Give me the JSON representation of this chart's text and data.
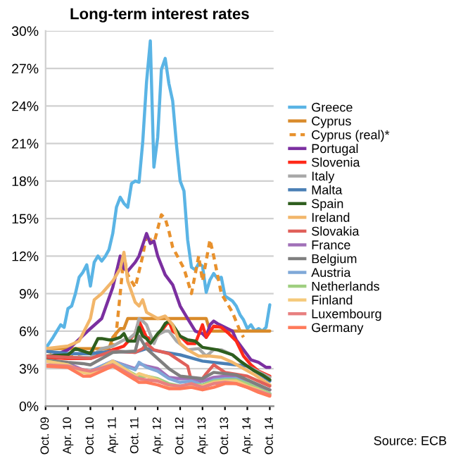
{
  "chart_data": {
    "type": "line",
    "title": "Long-term interest rates",
    "annotations": [
      "Source: ECB"
    ],
    "xlim": [
      "2009-10",
      "2014-11"
    ],
    "ylim": [
      0,
      30
    ],
    "xticks": [
      {
        "value": "2009-10",
        "label": "Oct. 09"
      },
      {
        "value": "2010-04",
        "label": "Apr. 10"
      },
      {
        "value": "2010-10",
        "label": "Oct. 10"
      },
      {
        "value": "2011-04",
        "label": "Apr. 11"
      },
      {
        "value": "2011-10",
        "label": "Oct. 11"
      },
      {
        "value": "2012-04",
        "label": "Apr. 12"
      },
      {
        "value": "2012-10",
        "label": "Oct. 12"
      },
      {
        "value": "2013-04",
        "label": "Apr. 13"
      },
      {
        "value": "2013-10",
        "label": "Oct. 13"
      },
      {
        "value": "2014-04",
        "label": "Apr. 14"
      },
      {
        "value": "2014-10",
        "label": "Oct. 14"
      }
    ],
    "yticks": [
      {
        "value": 0,
        "label": "0%"
      },
      {
        "value": 3,
        "label": "3%"
      },
      {
        "value": 6,
        "label": "6%"
      },
      {
        "value": 9,
        "label": "9%"
      },
      {
        "value": 12,
        "label": "12%"
      },
      {
        "value": 15,
        "label": "15%"
      },
      {
        "value": 18,
        "label": "18%"
      },
      {
        "value": 21,
        "label": "21%"
      },
      {
        "value": 24,
        "label": "24%"
      },
      {
        "value": 27,
        "label": "27%"
      },
      {
        "value": 30,
        "label": "30%"
      }
    ],
    "grid": "y",
    "legend": "right",
    "marker": "none",
    "x": [
      "2009-10",
      "2010-04",
      "2010-08",
      "2010-10",
      "2011-04",
      "2011-10",
      "2011-11",
      "2012-01",
      "2012-04",
      "2012-07",
      "2012-10",
      "2013-01",
      "2013-04",
      "2013-07",
      "2013-10",
      "2014-01",
      "2014-04",
      "2014-07",
      "2014-10"
    ],
    "series": [
      {
        "name": "Greece",
        "color": "#5ab4e5",
        "x": [
          "2009-10",
          "2009-12",
          "2010-02",
          "2010-03",
          "2010-04",
          "2010-05",
          "2010-06",
          "2010-07",
          "2010-08",
          "2010-09",
          "2010-10",
          "2010-11",
          "2010-12",
          "2011-01",
          "2011-02",
          "2011-03",
          "2011-04",
          "2011-05",
          "2011-06",
          "2011-07",
          "2011-08",
          "2011-09",
          "2011-10",
          "2011-11",
          "2011-12",
          "2012-01",
          "2012-02",
          "2012-03",
          "2012-04",
          "2012-05",
          "2012-06",
          "2012-07",
          "2012-08",
          "2012-09",
          "2012-10",
          "2012-11",
          "2012-12",
          "2013-01",
          "2013-02",
          "2013-03",
          "2013-04",
          "2013-05",
          "2013-06",
          "2013-07",
          "2013-08",
          "2013-09",
          "2013-10",
          "2013-11",
          "2013-12",
          "2014-01",
          "2014-02",
          "2014-03",
          "2014-04",
          "2014-05",
          "2014-06",
          "2014-07",
          "2014-08",
          "2014-09",
          "2014-10"
        ],
        "values": [
          4.6,
          5.5,
          6.5,
          6.3,
          7.8,
          8.0,
          9.0,
          10.3,
          10.7,
          11.3,
          9.6,
          11.5,
          12.0,
          11.6,
          12.0,
          12.5,
          13.8,
          15.9,
          16.7,
          16.2,
          15.9,
          17.8,
          18.0,
          17.9,
          21.1,
          25.9,
          29.2,
          19.1,
          21.5,
          26.9,
          27.8,
          25.8,
          24.4,
          20.9,
          18.0,
          17.2,
          13.3,
          11.1,
          10.9,
          11.4,
          11.2,
          9.1,
          10.1,
          10.6,
          10.2,
          10.3,
          8.8,
          8.6,
          8.4,
          8.0,
          7.3,
          6.9,
          6.2,
          6.5,
          6.0,
          6.2,
          6.0,
          6.3,
          8.1
        ]
      },
      {
        "name": "Cyprus",
        "color": "#d98b2b",
        "x": [
          "2009-10",
          "2011-03",
          "2011-04",
          "2011-06",
          "2011-07",
          "2011-08",
          "2013-05",
          "2013-06",
          "2014-10"
        ],
        "values": [
          4.6,
          4.6,
          5.5,
          6.2,
          6.2,
          7.0,
          7.0,
          6.0,
          6.0
        ]
      },
      {
        "name": "Cyprus (real)*",
        "color": "#e8912d",
        "line_style": "dashed",
        "x": [
          "2009-10",
          "2010-04",
          "2010-10",
          "2011-04",
          "2011-05",
          "2011-07",
          "2011-08",
          "2011-10",
          "2011-12",
          "2012-01",
          "2012-03",
          "2012-05",
          "2012-06",
          "2012-07",
          "2012-08",
          "2012-11",
          "2013-01",
          "2013-03",
          "2013-04",
          "2013-06",
          "2013-07",
          "2013-09",
          "2013-12",
          "2014-02",
          "2014-03"
        ],
        "values": [
          4.4,
          4.0,
          4.3,
          4.8,
          6.0,
          12.0,
          10.5,
          9.5,
          12.0,
          13.7,
          13.0,
          15.3,
          15.0,
          14.0,
          12.7,
          11.0,
          9.0,
          12.0,
          10.0,
          13.3,
          12.0,
          9.0,
          7.5,
          6.0,
          5.5
        ]
      },
      {
        "name": "Portugal",
        "color": "#7b2fa0",
        "x": [
          "2009-10",
          "2010-04",
          "2010-10",
          "2011-01",
          "2011-04",
          "2011-06",
          "2011-07",
          "2011-08",
          "2011-10",
          "2011-11",
          "2012-01",
          "2012-02",
          "2012-03",
          "2012-04",
          "2012-06",
          "2012-08",
          "2012-10",
          "2012-12",
          "2013-02",
          "2013-04",
          "2013-05",
          "2013-06",
          "2013-07",
          "2013-08",
          "2013-10",
          "2013-12",
          "2014-01",
          "2014-03",
          "2014-05",
          "2014-07",
          "2014-09",
          "2014-10"
        ],
        "values": [
          3.8,
          4.5,
          6.2,
          7.0,
          9.5,
          12.0,
          11.0,
          10.8,
          11.5,
          12.0,
          13.8,
          13.0,
          13.2,
          12.0,
          10.5,
          9.7,
          8.0,
          7.0,
          6.0,
          5.8,
          5.5,
          6.5,
          6.8,
          6.6,
          6.3,
          6.0,
          5.3,
          4.5,
          3.7,
          3.5,
          3.1,
          3.1
        ]
      },
      {
        "name": "Slovenia",
        "color": "#ff2a1a",
        "x": [
          "2009-10",
          "2010-04",
          "2010-10",
          "2011-01",
          "2011-04",
          "2011-07",
          "2011-10",
          "2011-11",
          "2012-01",
          "2012-03",
          "2012-05",
          "2012-07",
          "2012-08",
          "2012-10",
          "2012-12",
          "2013-02",
          "2013-04",
          "2013-05",
          "2013-07",
          "2013-09",
          "2013-11",
          "2014-01",
          "2014-03",
          "2014-05",
          "2014-07",
          "2014-10"
        ],
        "values": [
          3.9,
          3.8,
          3.8,
          4.2,
          4.5,
          4.8,
          5.8,
          6.8,
          5.5,
          5.3,
          6.0,
          6.8,
          6.0,
          5.6,
          5.0,
          5.0,
          6.5,
          5.5,
          6.4,
          6.3,
          5.8,
          5.2,
          4.0,
          3.3,
          2.8,
          2.4
        ]
      },
      {
        "name": "Italy",
        "color": "#a8a8a8",
        "x": [
          "2009-10",
          "2010-04",
          "2010-10",
          "2011-01",
          "2011-04",
          "2011-07",
          "2011-08",
          "2011-10",
          "2011-11",
          "2011-12",
          "2012-01",
          "2012-03",
          "2012-04",
          "2012-06",
          "2012-07",
          "2012-09",
          "2012-12",
          "2013-03",
          "2013-05",
          "2013-07",
          "2013-09",
          "2013-12",
          "2014-02",
          "2014-04",
          "2014-06",
          "2014-08",
          "2014-10"
        ],
        "values": [
          4.0,
          3.9,
          3.9,
          4.6,
          4.8,
          5.3,
          5.3,
          5.8,
          7.0,
          6.8,
          6.5,
          5.0,
          5.7,
          6.0,
          6.0,
          5.2,
          4.5,
          4.6,
          4.0,
          4.5,
          4.5,
          4.1,
          3.6,
          3.2,
          2.9,
          2.6,
          2.3
        ]
      },
      {
        "name": "Malta",
        "color": "#4a7fb5",
        "x": [
          "2009-10",
          "2010-04",
          "2010-10",
          "2011-04",
          "2011-10",
          "2012-01",
          "2012-04",
          "2012-10",
          "2013-04",
          "2013-10",
          "2014-04",
          "2014-10"
        ],
        "values": [
          4.4,
          4.2,
          4.2,
          4.4,
          4.3,
          4.6,
          4.4,
          4.1,
          3.6,
          3.4,
          3.2,
          2.0
        ]
      },
      {
        "name": "Spain",
        "color": "#2e5e1e",
        "x": [
          "2009-10",
          "2010-04",
          "2010-06",
          "2010-10",
          "2010-12",
          "2011-01",
          "2011-03",
          "2011-04",
          "2011-06",
          "2011-07",
          "2011-08",
          "2011-10",
          "2011-11",
          "2011-12",
          "2012-01",
          "2012-02",
          "2012-04",
          "2012-05",
          "2012-06",
          "2012-07",
          "2012-08",
          "2012-10",
          "2012-12",
          "2013-02",
          "2013-04",
          "2013-06",
          "2013-08",
          "2013-10",
          "2013-12",
          "2014-02",
          "2014-04",
          "2014-06",
          "2014-08",
          "2014-10"
        ],
        "values": [
          4.0,
          4.1,
          4.6,
          4.2,
          5.4,
          5.4,
          5.3,
          5.3,
          5.5,
          5.8,
          5.2,
          5.2,
          6.3,
          5.6,
          5.4,
          5.0,
          5.8,
          6.1,
          6.6,
          6.8,
          6.5,
          5.6,
          5.3,
          5.2,
          4.7,
          4.6,
          4.5,
          4.3,
          4.1,
          3.6,
          3.2,
          2.8,
          2.5,
          2.1
        ]
      },
      {
        "name": "Ireland",
        "color": "#f2b66a",
        "x": [
          "2009-10",
          "2010-04",
          "2010-07",
          "2010-10",
          "2010-11",
          "2011-01",
          "2011-04",
          "2011-06",
          "2011-07",
          "2011-08",
          "2011-10",
          "2011-11",
          "2011-12",
          "2012-01",
          "2012-04",
          "2012-06",
          "2012-08",
          "2012-10",
          "2012-12",
          "2013-03",
          "2013-06",
          "2013-09",
          "2013-12",
          "2014-03",
          "2014-06",
          "2014-10"
        ],
        "values": [
          4.6,
          4.8,
          5.2,
          7.0,
          8.5,
          9.0,
          10.0,
          11.0,
          12.3,
          10.0,
          8.3,
          8.0,
          8.5,
          7.5,
          7.0,
          7.2,
          6.5,
          5.0,
          4.5,
          4.0,
          4.0,
          3.9,
          3.5,
          3.0,
          2.5,
          1.7
        ]
      },
      {
        "name": "Slovakia",
        "color": "#e0605a",
        "x": [
          "2009-10",
          "2010-04",
          "2010-10",
          "2011-04",
          "2011-10",
          "2011-12",
          "2012-01",
          "2012-03",
          "2012-07",
          "2012-10",
          "2012-12",
          "2013-01",
          "2013-03",
          "2013-05",
          "2013-07",
          "2013-10",
          "2014-04",
          "2014-10"
        ],
        "values": [
          4.0,
          3.9,
          3.8,
          4.4,
          4.3,
          4.6,
          5.0,
          4.5,
          4.2,
          3.6,
          3.2,
          2.0,
          1.8,
          2.6,
          3.3,
          2.7,
          2.4,
          1.6
        ]
      },
      {
        "name": "France",
        "color": "#a070b8",
        "values": [
          3.6,
          3.4,
          2.9,
          2.8,
          3.6,
          3.0,
          3.4,
          3.2,
          3.0,
          2.3,
          2.2,
          2.2,
          2.0,
          2.3,
          2.4,
          2.4,
          2.0,
          1.6,
          1.3
        ]
      },
      {
        "name": "Belgium",
        "color": "#7f7f7f",
        "values": [
          3.7,
          3.5,
          3.4,
          3.3,
          4.3,
          4.4,
          5.6,
          4.6,
          3.8,
          3.0,
          2.4,
          2.3,
          2.2,
          2.7,
          2.6,
          2.5,
          2.1,
          1.7,
          1.3
        ]
      },
      {
        "name": "Austria",
        "color": "#7fa8d8",
        "values": [
          null,
          3.3,
          2.8,
          2.8,
          3.6,
          2.9,
          3.5,
          3.1,
          2.8,
          2.2,
          1.9,
          2.0,
          1.7,
          2.1,
          2.2,
          2.2,
          1.8,
          1.4,
          1.0
        ]
      },
      {
        "name": "Netherlands",
        "color": "#9fcf80",
        "values": [
          3.6,
          3.3,
          2.7,
          2.6,
          3.5,
          2.5,
          2.4,
          2.4,
          2.2,
          1.8,
          1.6,
          1.7,
          1.7,
          2.0,
          2.1,
          2.1,
          1.8,
          1.4,
          1.0
        ]
      },
      {
        "name": "Finland",
        "color": "#f5c97a",
        "values": [
          3.6,
          3.3,
          2.7,
          2.6,
          3.6,
          2.4,
          2.6,
          2.4,
          2.1,
          1.6,
          1.6,
          1.7,
          1.6,
          1.9,
          2.0,
          2.0,
          1.6,
          1.3,
          0.9
        ]
      },
      {
        "name": "Luxembourg",
        "color": "#e88080",
        "values": [
          3.3,
          3.2,
          2.9,
          2.8,
          3.3,
          2.3,
          2.2,
          2.1,
          2.0,
          1.7,
          1.6,
          1.8,
          1.5,
          1.8,
          1.9,
          1.8,
          1.5,
          1.2,
          0.9
        ]
      },
      {
        "name": "Germany",
        "color": "#ff7a5a",
        "values": [
          3.2,
          3.1,
          2.4,
          2.4,
          3.2,
          2.1,
          1.9,
          1.9,
          1.7,
          1.4,
          1.4,
          1.5,
          1.3,
          1.5,
          1.8,
          1.8,
          1.5,
          1.1,
          0.8
        ]
      }
    ]
  }
}
